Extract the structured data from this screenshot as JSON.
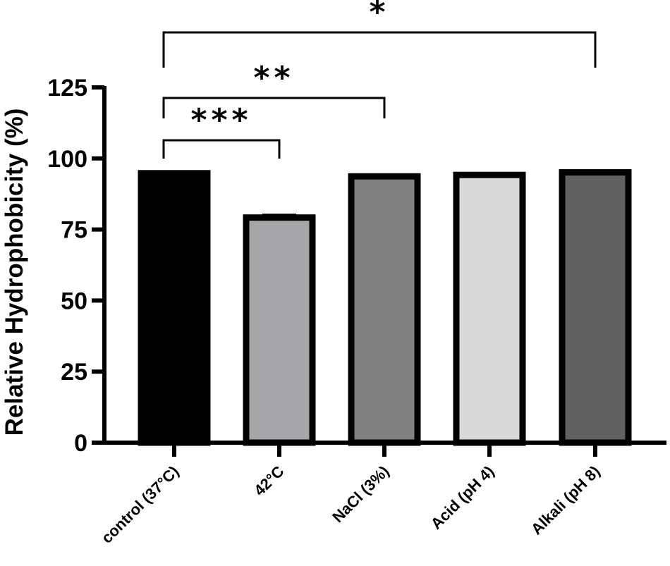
{
  "chart_data": {
    "type": "bar",
    "title": "",
    "xlabel": "",
    "ylabel": "Relative Hydrophobicity (%)",
    "ylim": [
      0,
      125
    ],
    "yticks": [
      0,
      25,
      50,
      75,
      100,
      125
    ],
    "categories": [
      "control (37°C)",
      "42°C",
      "NaCl (3%)",
      "Acid (pH 4)",
      "Alkali (pH 8)"
    ],
    "values": [
      94.8,
      79.2,
      93.7,
      94.2,
      95.1
    ],
    "errors": [
      0.3,
      1.0,
      0.3,
      0.3,
      0.4
    ],
    "colors": [
      "#000000",
      "#a6a6a9",
      "#808080",
      "#d9d9d9",
      "#616161"
    ],
    "comparisons": [
      {
        "from": 0,
        "to": 1,
        "label": "***"
      },
      {
        "from": 0,
        "to": 2,
        "label": "**"
      },
      {
        "from": 0,
        "to": 4,
        "label": "*"
      }
    ]
  }
}
